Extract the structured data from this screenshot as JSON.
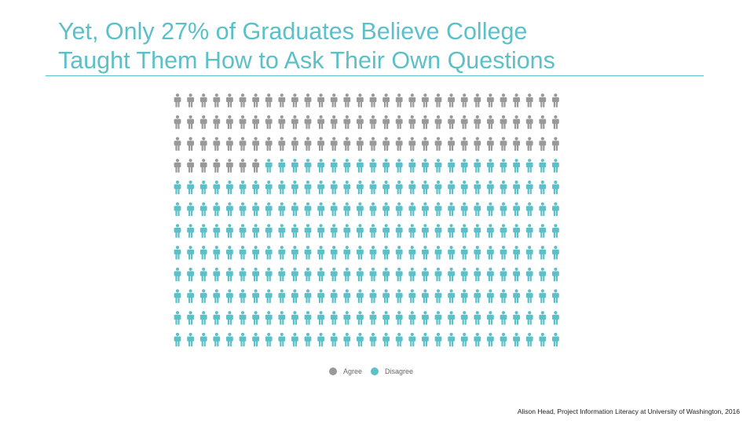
{
  "slide": {
    "title_line1": "Yet, Only 27% of Graduates Believe College",
    "title_line2": "Taught Them How to Ask Their Own Questions",
    "source": "Alison Head, Project Information Literacy at University of Washington, 2016",
    "accent_color": "#5bc0c8"
  },
  "chart_data": {
    "type": "waffle",
    "title": "Yet, Only 27% of Graduates Believe College Taught Them How to Ask Their Own Questions",
    "total_icons": 360,
    "grid": {
      "rows": 12,
      "cols": 30
    },
    "icon": "person-icon",
    "fill_order": "row-major, top-left first",
    "series": [
      {
        "name": "Agree",
        "percent": 27,
        "count": 97,
        "color": "#999999"
      },
      {
        "name": "Disagree",
        "percent": 73,
        "count": 263,
        "color": "#5bc0c8"
      }
    ],
    "legend": {
      "placement": "bottom-center",
      "entries": [
        "Agree",
        "Disagree"
      ]
    },
    "grid_lines": false
  }
}
